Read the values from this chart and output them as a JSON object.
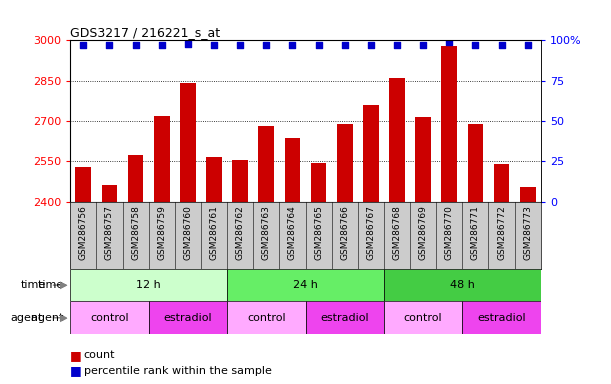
{
  "title": "GDS3217 / 216221_s_at",
  "samples": [
    "GSM286756",
    "GSM286757",
    "GSM286758",
    "GSM286759",
    "GSM286760",
    "GSM286761",
    "GSM286762",
    "GSM286763",
    "GSM286764",
    "GSM286765",
    "GSM286766",
    "GSM286767",
    "GSM286768",
    "GSM286769",
    "GSM286770",
    "GSM286771",
    "GSM286772",
    "GSM286773"
  ],
  "counts": [
    2530,
    2460,
    2575,
    2720,
    2840,
    2565,
    2555,
    2680,
    2635,
    2545,
    2690,
    2760,
    2860,
    2715,
    2980,
    2690,
    2540,
    2455
  ],
  "percentile_ranks": [
    97,
    97,
    97,
    97,
    98,
    97,
    97,
    97,
    97,
    97,
    97,
    97,
    97,
    97,
    99,
    97,
    97,
    97
  ],
  "ylim_left": [
    2400,
    3000
  ],
  "ylim_right": [
    0,
    100
  ],
  "yticks_left": [
    2400,
    2550,
    2700,
    2850,
    3000
  ],
  "yticks_right": [
    0,
    25,
    50,
    75,
    100
  ],
  "bar_color": "#cc0000",
  "dot_color": "#0000cc",
  "time_groups": [
    {
      "label": "12 h",
      "start": 0,
      "end": 6,
      "color": "#ccffcc"
    },
    {
      "label": "24 h",
      "start": 6,
      "end": 12,
      "color": "#66ee66"
    },
    {
      "label": "48 h",
      "start": 12,
      "end": 18,
      "color": "#44cc44"
    }
  ],
  "agent_groups": [
    {
      "label": "control",
      "start": 0,
      "end": 3,
      "color": "#ffaaff"
    },
    {
      "label": "estradiol",
      "start": 3,
      "end": 6,
      "color": "#ee44ee"
    },
    {
      "label": "control",
      "start": 6,
      "end": 9,
      "color": "#ffaaff"
    },
    {
      "label": "estradiol",
      "start": 9,
      "end": 12,
      "color": "#ee44ee"
    },
    {
      "label": "control",
      "start": 12,
      "end": 15,
      "color": "#ffaaff"
    },
    {
      "label": "estradiol",
      "start": 15,
      "end": 18,
      "color": "#ee44ee"
    }
  ],
  "legend_count_label": "count",
  "legend_pct_label": "percentile rank within the sample",
  "background_color": "#ffffff",
  "plot_bg_color": "#ffffff",
  "tick_label_bg": "#cccccc",
  "grid_color": "#000000",
  "border_color": "#000000"
}
